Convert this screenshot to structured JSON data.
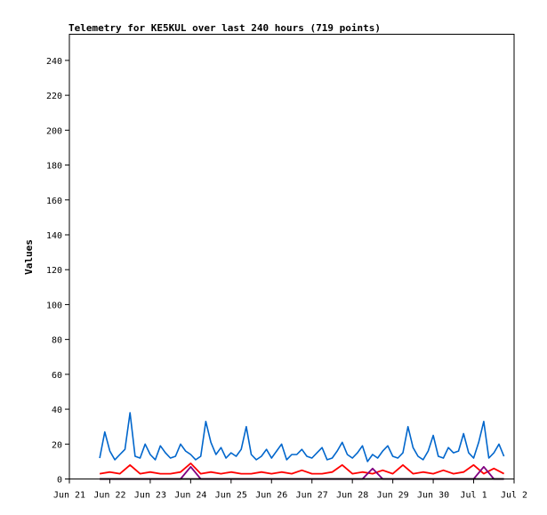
{
  "chart_data": {
    "type": "line",
    "title": "Telemetry for KE5KUL over last 240 hours (719 points)",
    "xlabel": "",
    "ylabel": "Values",
    "ylim": [
      0,
      255
    ],
    "yticks": [
      0,
      20,
      40,
      60,
      80,
      100,
      120,
      140,
      160,
      180,
      200,
      220,
      240
    ],
    "xlim": [
      "Jun 21",
      "Jul 2"
    ],
    "x_tick_labels": [
      "Jun 21",
      "Jun 22",
      "Jun 23",
      "Jun 24",
      "Jun 25",
      "Jun 26",
      "Jun 27",
      "Jun 28",
      "Jun 29",
      "Jun 30",
      "Jul 1",
      "Jul 2"
    ],
    "grid": false,
    "legend": "none",
    "series": [
      {
        "color": "#0066cc",
        "x": [
          "Jun 21 18:00",
          "Jun 21 21:00",
          "Jun 22 00:00",
          "Jun 22 03:00",
          "Jun 22 06:00",
          "Jun 22 09:00",
          "Jun 22 12:00",
          "Jun 22 15:00",
          "Jun 22 18:00",
          "Jun 22 21:00",
          "Jun 23 00:00",
          "Jun 23 03:00",
          "Jun 23 06:00",
          "Jun 23 09:00",
          "Jun 23 12:00",
          "Jun 23 15:00",
          "Jun 23 18:00",
          "Jun 23 21:00",
          "Jun 24 00:00",
          "Jun 24 03:00",
          "Jun 24 06:00",
          "Jun 24 09:00",
          "Jun 24 12:00",
          "Jun 24 15:00",
          "Jun 24 18:00",
          "Jun 24 21:00",
          "Jun 25 00:00",
          "Jun 25 03:00",
          "Jun 25 06:00",
          "Jun 25 09:00",
          "Jun 25 12:00",
          "Jun 25 15:00",
          "Jun 25 18:00",
          "Jun 25 21:00",
          "Jun 26 00:00",
          "Jun 26 03:00",
          "Jun 26 06:00",
          "Jun 26 09:00",
          "Jun 26 12:00",
          "Jun 26 15:00",
          "Jun 26 18:00",
          "Jun 26 21:00",
          "Jun 27 00:00",
          "Jun 27 03:00",
          "Jun 27 06:00",
          "Jun 27 09:00",
          "Jun 27 12:00",
          "Jun 27 15:00",
          "Jun 27 18:00",
          "Jun 27 21:00",
          "Jun 28 00:00",
          "Jun 28 03:00",
          "Jun 28 06:00",
          "Jun 28 09:00",
          "Jun 28 12:00",
          "Jun 28 15:00",
          "Jun 28 18:00",
          "Jun 28 21:00",
          "Jun 29 00:00",
          "Jun 29 03:00",
          "Jun 29 06:00",
          "Jun 29 09:00",
          "Jun 29 12:00",
          "Jun 29 15:00",
          "Jun 29 18:00",
          "Jun 29 21:00",
          "Jun 30 00:00",
          "Jun 30 03:00",
          "Jun 30 06:00",
          "Jun 30 09:00",
          "Jun 30 12:00",
          "Jun 30 15:00",
          "Jun 30 18:00",
          "Jun 30 21:00",
          "Jul 1 00:00",
          "Jul 1 03:00",
          "Jul 1 06:00",
          "Jul 1 09:00",
          "Jul 1 12:00",
          "Jul 1 15:00",
          "Jul 1 18:00"
        ],
        "values": [
          12,
          27,
          16,
          11,
          14,
          17,
          38,
          13,
          12,
          20,
          14,
          11,
          19,
          15,
          12,
          13,
          20,
          16,
          14,
          11,
          13,
          33,
          21,
          14,
          18,
          12,
          15,
          13,
          17,
          30,
          14,
          11,
          13,
          17,
          12,
          16,
          20,
          11,
          14,
          14,
          17,
          13,
          12,
          15,
          18,
          11,
          12,
          16,
          21,
          14,
          12,
          15,
          19,
          10,
          14,
          12,
          16,
          19,
          13,
          12,
          15,
          30,
          18,
          13,
          11,
          16,
          25,
          13,
          12,
          18,
          15,
          16,
          26,
          15,
          12,
          21,
          33,
          12,
          15,
          20,
          13
        ]
      },
      {
        "color": "#ff0000",
        "x": [
          "Jun 21 18:00",
          "Jun 22 00:00",
          "Jun 22 06:00",
          "Jun 22 12:00",
          "Jun 22 18:00",
          "Jun 23 00:00",
          "Jun 23 06:00",
          "Jun 23 12:00",
          "Jun 23 18:00",
          "Jun 24 00:00",
          "Jun 24 06:00",
          "Jun 24 12:00",
          "Jun 24 18:00",
          "Jun 25 00:00",
          "Jun 25 06:00",
          "Jun 25 12:00",
          "Jun 25 18:00",
          "Jun 26 00:00",
          "Jun 26 06:00",
          "Jun 26 12:00",
          "Jun 26 18:00",
          "Jun 27 00:00",
          "Jun 27 06:00",
          "Jun 27 12:00",
          "Jun 27 18:00",
          "Jun 28 00:00",
          "Jun 28 06:00",
          "Jun 28 12:00",
          "Jun 28 18:00",
          "Jun 29 00:00",
          "Jun 29 06:00",
          "Jun 29 12:00",
          "Jun 29 18:00",
          "Jun 30 00:00",
          "Jun 30 06:00",
          "Jun 30 12:00",
          "Jun 30 18:00",
          "Jul 1 00:00",
          "Jul 1 06:00",
          "Jul 1 12:00",
          "Jul 1 18:00"
        ],
        "values": [
          3,
          4,
          3,
          8,
          3,
          4,
          3,
          3,
          4,
          9,
          3,
          4,
          3,
          4,
          3,
          3,
          4,
          3,
          4,
          3,
          5,
          3,
          3,
          4,
          8,
          3,
          4,
          3,
          5,
          3,
          8,
          3,
          4,
          3,
          5,
          3,
          4,
          8,
          3,
          6,
          3
        ]
      },
      {
        "color": "#800080",
        "x": [
          "Jun 21 18:00",
          "Jun 22 18:00",
          "Jun 23 18:00",
          "Jun 24 00:00",
          "Jun 24 06:00",
          "Jun 24 18:00",
          "Jun 25 18:00",
          "Jun 26 18:00",
          "Jun 27 18:00",
          "Jun 28 06:00",
          "Jun 28 12:00",
          "Jun 28 18:00",
          "Jun 29 18:00",
          "Jun 30 18:00",
          "Jul 1 00:00",
          "Jul 1 06:00",
          "Jul 1 12:00",
          "Jul 1 18:00"
        ],
        "values": [
          0,
          0,
          0,
          7,
          0,
          0,
          0,
          0,
          0,
          0,
          6,
          0,
          0,
          0,
          0,
          7,
          0,
          0
        ]
      },
      {
        "color": "#000000",
        "x": [
          "Jun 21 18:00",
          "Jul 1 18:00"
        ],
        "values": [
          0,
          0
        ]
      }
    ]
  }
}
